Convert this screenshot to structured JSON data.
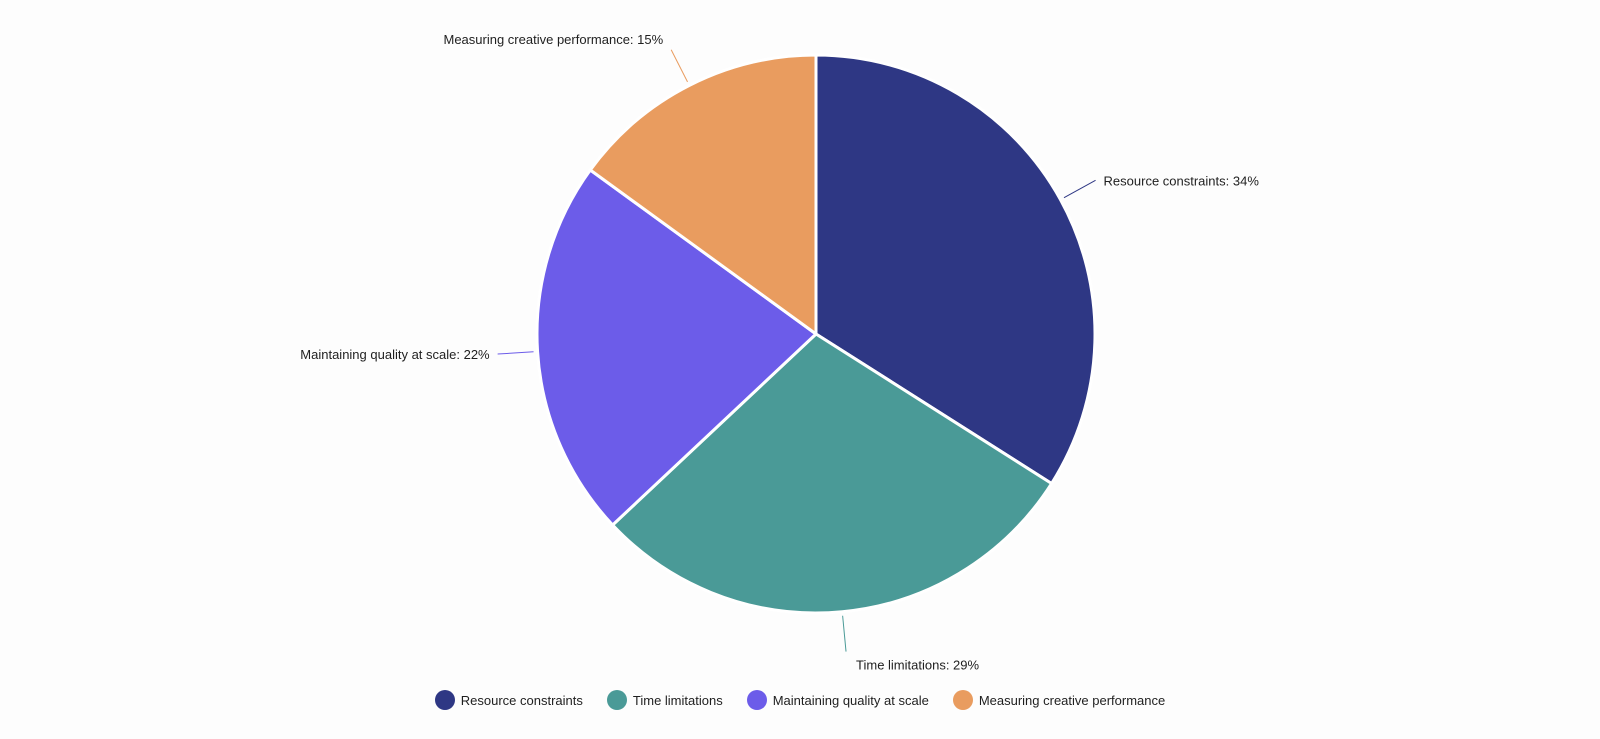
{
  "chart_data": {
    "type": "pie",
    "title": "",
    "slices": [
      {
        "label": "Resource constraints",
        "value": 34,
        "display": "Resource constraints: 34%",
        "color": "#2e3784"
      },
      {
        "label": "Time limitations",
        "value": 29,
        "display": "Time limitations: 29%",
        "color": "#4a9a97"
      },
      {
        "label": "Maintaining quality at scale",
        "value": 22,
        "display": "Maintaining quality at scale: 22%",
        "color": "#6c5ce9"
      },
      {
        "label": "Measuring creative performance",
        "value": 15,
        "display": "Measuring creative performance: 15%",
        "color": "#e99c5f"
      }
    ],
    "start": "12 o'clock",
    "direction": "clockwise",
    "legend_position": "bottom"
  }
}
